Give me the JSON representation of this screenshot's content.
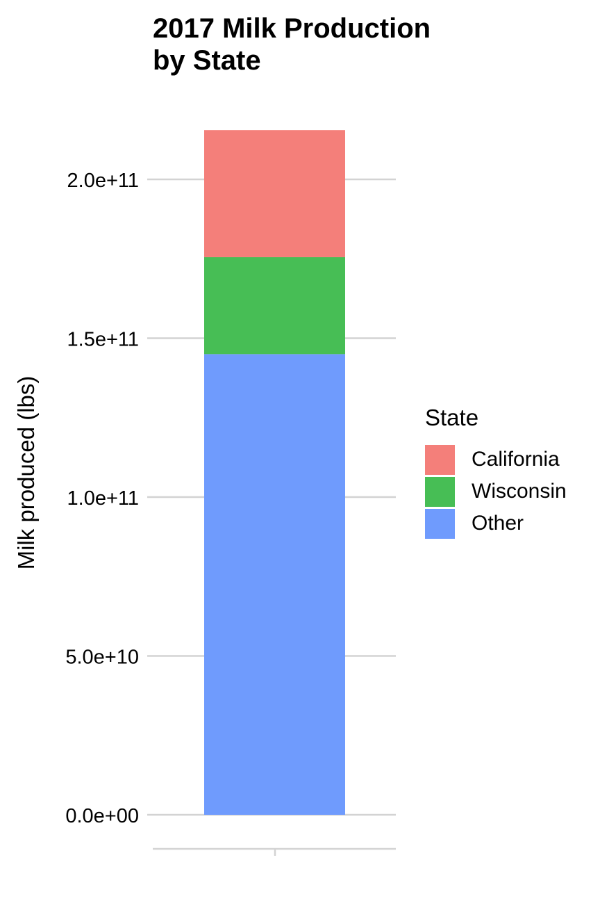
{
  "chart_data": {
    "type": "bar",
    "stacked": true,
    "title": "2017 Milk Production\nby State",
    "xlabel": "",
    "ylabel": "Milk produced (lbs)",
    "categories": [
      ""
    ],
    "ylim": [
      0,
      215000000000
    ],
    "yticks": [
      0,
      50000000000,
      100000000000,
      150000000000,
      200000000000
    ],
    "ytick_labels": [
      "0.0e+00",
      "5.0e+10",
      "1.0e+11",
      "1.5e+11",
      "2.0e+11"
    ],
    "series": [
      {
        "name": "Other",
        "values": [
          145000000000
        ],
        "color": "#6f9bfd"
      },
      {
        "name": "Wisconsin",
        "values": [
          30500000000
        ],
        "color": "#47be55"
      },
      {
        "name": "California",
        "values": [
          40000000000
        ],
        "color": "#f47f7a"
      }
    ],
    "grid": true,
    "legend": {
      "title": "State",
      "position": "right",
      "order": [
        "California",
        "Wisconsin",
        "Other"
      ]
    }
  }
}
